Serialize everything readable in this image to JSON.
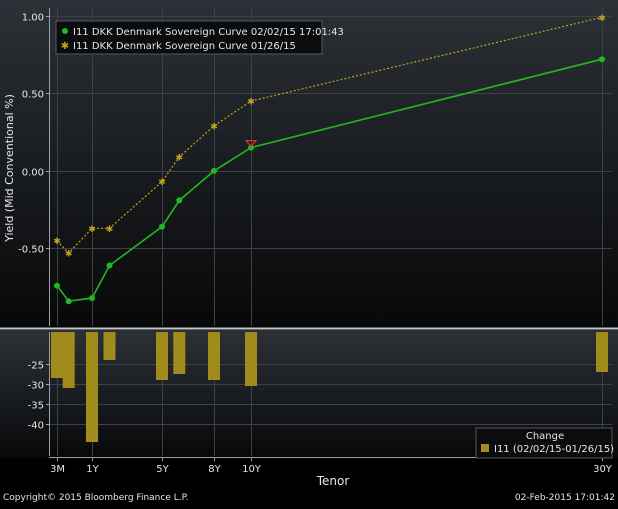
{
  "footer": {
    "copyright": "Copyright© 2015 Bloomberg Finance L.P.",
    "timestamp": "02-Feb-2015 17:01:42"
  },
  "colors": {
    "background": "#000000",
    "panel_top": "#2c3137",
    "panel_bottom": "#070809",
    "grid": "#3d4247",
    "current_curve": "#22b822",
    "prior_curve": "#bfa31f",
    "change_bar": "#a08c1c",
    "marker_highlight": "#e03030",
    "separator": "#c8c8c8"
  },
  "chart_data": [
    {
      "type": "line",
      "ylabel": "Yield (Mid Conventional %)",
      "xlabel": "Tenor",
      "ylim": [
        -1.0,
        1.05
      ],
      "yticks": [
        -0.5,
        0.0,
        0.5,
        1.0
      ],
      "ytick_labels": [
        "-0.50",
        "0.00",
        "0.50",
        "1.00"
      ],
      "x_scale": "tenor-years",
      "xticks": [
        0.25,
        1,
        5,
        8,
        10,
        30
      ],
      "xtick_labels": [
        "3M",
        "1Y",
        "5Y",
        "8Y",
        "10Y",
        "30Y"
      ],
      "grid": true,
      "legend_position": "top-left",
      "series": [
        {
          "name": "I11 DKK Denmark Sovereign Curve 02/02/15 17:01:43",
          "style": "solid-dot",
          "x": [
            0.25,
            0.5,
            1,
            2,
            5,
            6,
            8,
            10,
            30
          ],
          "y": [
            -0.74,
            -0.84,
            -0.82,
            -0.61,
            -0.36,
            -0.19,
            0.0,
            0.15,
            0.72
          ]
        },
        {
          "name": "I11 DKK Denmark Sovereign Curve 01/26/15",
          "style": "dotted-star",
          "x": [
            0.25,
            0.5,
            1,
            2,
            5,
            6,
            8,
            10,
            30
          ],
          "y": [
            -0.45,
            -0.53,
            -0.37,
            -0.37,
            -0.07,
            0.09,
            0.29,
            0.45,
            0.99
          ]
        }
      ]
    },
    {
      "type": "bar",
      "ylim": [
        -48,
        -17
      ],
      "yticks": [
        -25,
        -30,
        -35,
        -40
      ],
      "ytick_labels": [
        "-25",
        "-30",
        "-35",
        "-40"
      ],
      "grid": true,
      "legend_position": "bottom-right",
      "legend_title": "Change",
      "series": [
        {
          "name": "I11 (02/02/15-01/26/15)",
          "x": [
            0.25,
            0.5,
            1,
            2,
            5,
            6,
            8,
            10,
            30
          ],
          "y": [
            -28.5,
            -31.0,
            -44.5,
            -24.0,
            -29.0,
            -27.5,
            -29.0,
            -30.5,
            -27.0
          ]
        }
      ]
    }
  ]
}
